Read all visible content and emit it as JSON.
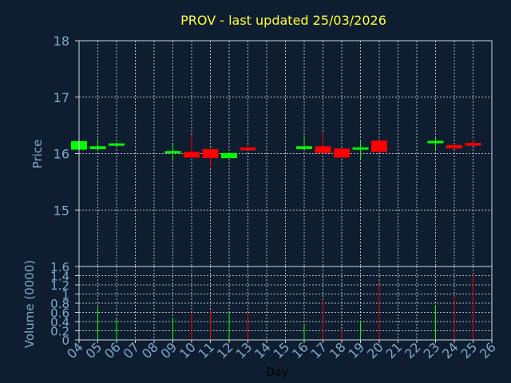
{
  "chart_data": [
    {
      "type": "candlestick",
      "title": "PROV - last updated 25/03/2026",
      "ylabel": "Price",
      "ylim": [
        14.0,
        18.0
      ],
      "yticks": [
        "15",
        "16",
        "17",
        "18"
      ],
      "grid": true,
      "candles": [
        {
          "day": "04",
          "open": 16.07,
          "close": 16.22,
          "high": 16.22,
          "low": 16.07
        },
        {
          "day": "05",
          "open": 16.08,
          "close": 16.13,
          "high": 16.26,
          "low": 16.08
        },
        {
          "day": "06",
          "open": 16.15,
          "close": 16.17,
          "high": 16.2,
          "low": 16.13
        },
        {
          "day": "09",
          "open": 16.01,
          "close": 16.04,
          "high": 16.16,
          "low": 15.87
        },
        {
          "day": "10",
          "open": 16.03,
          "close": 15.93,
          "high": 16.33,
          "low": 15.93
        },
        {
          "day": "11",
          "open": 16.08,
          "close": 15.92,
          "high": 16.08,
          "low": 15.76
        },
        {
          "day": "12",
          "open": 15.92,
          "close": 16.01,
          "high": 16.01,
          "low": 15.92
        },
        {
          "day": "13",
          "open": 16.11,
          "close": 16.06,
          "high": 16.16,
          "low": 16.06
        },
        {
          "day": "16",
          "open": 16.08,
          "close": 16.13,
          "high": 16.32,
          "low": 16.08
        },
        {
          "day": "17",
          "open": 16.13,
          "close": 16.01,
          "high": 16.38,
          "low": 16.01
        },
        {
          "day": "18",
          "open": 16.09,
          "close": 15.93,
          "high": 16.09,
          "low": 15.93
        },
        {
          "day": "19",
          "open": 16.08,
          "close": 16.1,
          "high": 16.23,
          "low": 15.89
        },
        {
          "day": "20",
          "open": 16.23,
          "close": 16.03,
          "high": 16.23,
          "low": 16.03
        },
        {
          "day": "23",
          "open": 16.2,
          "close": 16.21,
          "high": 16.28,
          "low": 16.08
        },
        {
          "day": "24",
          "open": 16.15,
          "close": 16.09,
          "high": 16.15,
          "low": 16.09
        },
        {
          "day": "25",
          "open": 16.19,
          "close": 16.14,
          "high": 16.24,
          "low": 16.14
        }
      ],
      "colors": {
        "up": "#00ff00",
        "down": "#ff0000"
      }
    },
    {
      "type": "bar",
      "ylabel": "Volume (0000)",
      "xlabel": "Day",
      "ylim": [
        0,
        1.6
      ],
      "yticks": [
        "0",
        "0.2",
        "0.4",
        "0.6",
        "0.8",
        "1",
        "1.2",
        "1.4",
        "1.6"
      ],
      "categories": [
        "04",
        "05",
        "06",
        "07",
        "08",
        "09",
        "10",
        "11",
        "12",
        "13",
        "14",
        "15",
        "16",
        "17",
        "18",
        "19",
        "20",
        "21",
        "22",
        "23",
        "24",
        "25",
        "26"
      ],
      "volumes": [
        {
          "day": "05",
          "value": 0.72,
          "color": "#00ff00"
        },
        {
          "day": "06",
          "value": 0.46,
          "color": "#00ff00"
        },
        {
          "day": "09",
          "value": 0.48,
          "color": "#00ff00"
        },
        {
          "day": "10",
          "value": 0.58,
          "color": "#ff0000"
        },
        {
          "day": "11",
          "value": 0.64,
          "color": "#ff0000"
        },
        {
          "day": "12",
          "value": 0.62,
          "color": "#00ff00"
        },
        {
          "day": "13",
          "value": 0.6,
          "color": "#ff0000"
        },
        {
          "day": "16",
          "value": 0.33,
          "color": "#00ff00"
        },
        {
          "day": "17",
          "value": 0.86,
          "color": "#ff0000"
        },
        {
          "day": "18",
          "value": 0.22,
          "color": "#ff0000"
        },
        {
          "day": "19",
          "value": 0.42,
          "color": "#00ff00"
        },
        {
          "day": "20",
          "value": 1.22,
          "color": "#ff0000"
        },
        {
          "day": "23",
          "value": 0.76,
          "color": "#00ff00"
        },
        {
          "day": "24",
          "value": 0.96,
          "color": "#ff0000"
        },
        {
          "day": "25",
          "value": 1.42,
          "color": "#ff0000"
        }
      ]
    }
  ]
}
